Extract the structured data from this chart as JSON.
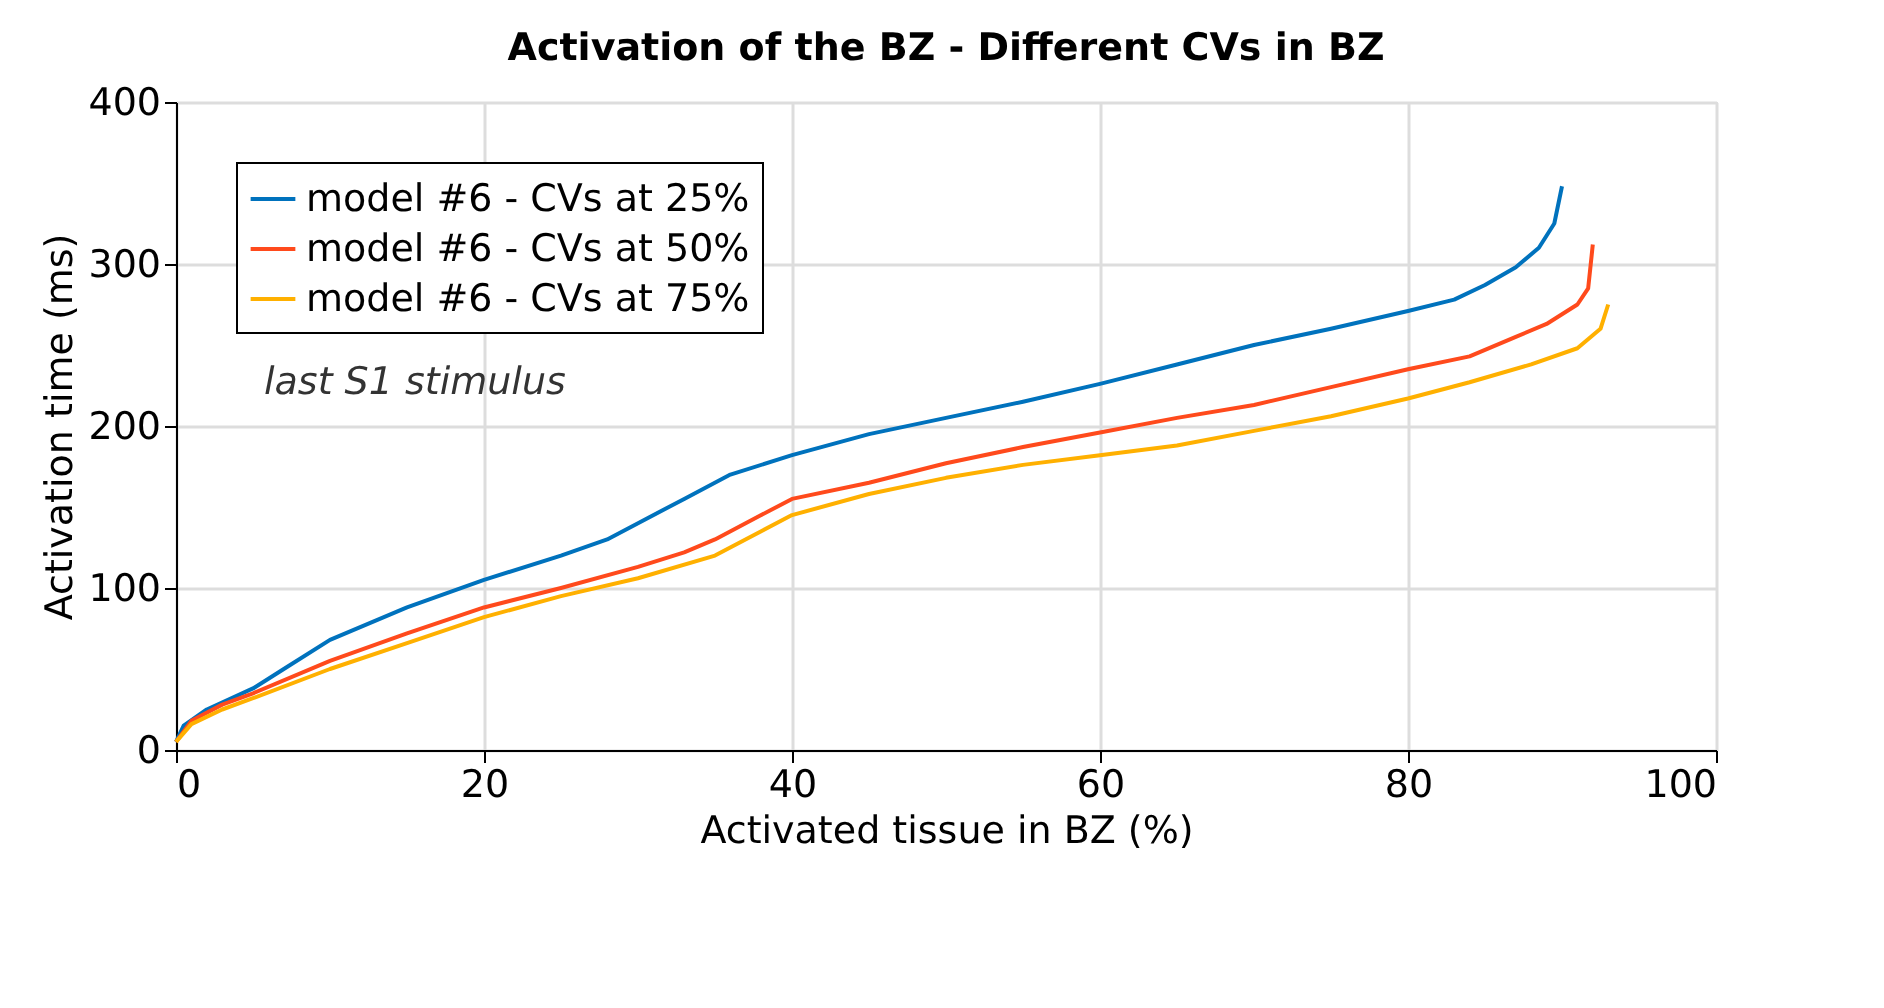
{
  "chart_data": {
    "type": "line",
    "title": "Activation of the BZ  -  Different CVs in BZ",
    "xlabel": "Activated tissue in BZ (%)",
    "ylabel": "Activation time (ms)",
    "xlim": [
      0,
      100
    ],
    "ylim": [
      0,
      400
    ],
    "xticks": [
      0,
      20,
      40,
      60,
      80,
      100
    ],
    "yticks": [
      0,
      100,
      200,
      300,
      400
    ],
    "grid": true,
    "legend": "top left",
    "line_style": "solid",
    "marker": "none",
    "annotations": [
      "last S1 stimulus"
    ],
    "series": [
      {
        "name": "model #6 - CVs at 25%",
        "color": "#0072bd",
        "x": [
          0,
          0.5,
          2,
          5,
          7,
          10,
          15,
          20,
          25,
          28,
          30,
          33,
          36,
          40,
          45,
          50,
          55,
          60,
          65,
          70,
          75,
          80,
          83,
          85,
          87,
          88.5,
          89.5,
          90
        ],
        "values": [
          5,
          15,
          25,
          38,
          50,
          68,
          88,
          105,
          120,
          130,
          140,
          155,
          170,
          182,
          195,
          205,
          215,
          226,
          238,
          250,
          260,
          271,
          278,
          287,
          298,
          310,
          325,
          348
        ]
      },
      {
        "name": "model #6 - CVs at 50%",
        "color": "#ff4a1c",
        "x": [
          0,
          1,
          3,
          5,
          10,
          15,
          20,
          25,
          30,
          33,
          35,
          38,
          40,
          45,
          50,
          55,
          60,
          65,
          70,
          75,
          80,
          84,
          87,
          89,
          91,
          91.7,
          92
        ],
        "values": [
          5,
          18,
          28,
          35,
          55,
          72,
          88,
          100,
          113,
          122,
          130,
          145,
          155,
          165,
          177,
          187,
          196,
          205,
          213,
          224,
          235,
          243,
          255,
          263,
          275,
          285,
          312
        ]
      },
      {
        "name": "model #6 - CVs at 75%",
        "color": "#ffb000",
        "x": [
          0,
          1,
          3,
          5,
          10,
          15,
          20,
          25,
          30,
          35,
          38,
          40,
          45,
          50,
          55,
          60,
          65,
          70,
          75,
          80,
          84,
          88,
          91,
          92.5,
          93
        ],
        "values": [
          5,
          16,
          25,
          32,
          50,
          66,
          82,
          95,
          106,
          120,
          135,
          145,
          158,
          168,
          176,
          182,
          188,
          197,
          206,
          217,
          227,
          238,
          248,
          260,
          275
        ]
      }
    ]
  }
}
